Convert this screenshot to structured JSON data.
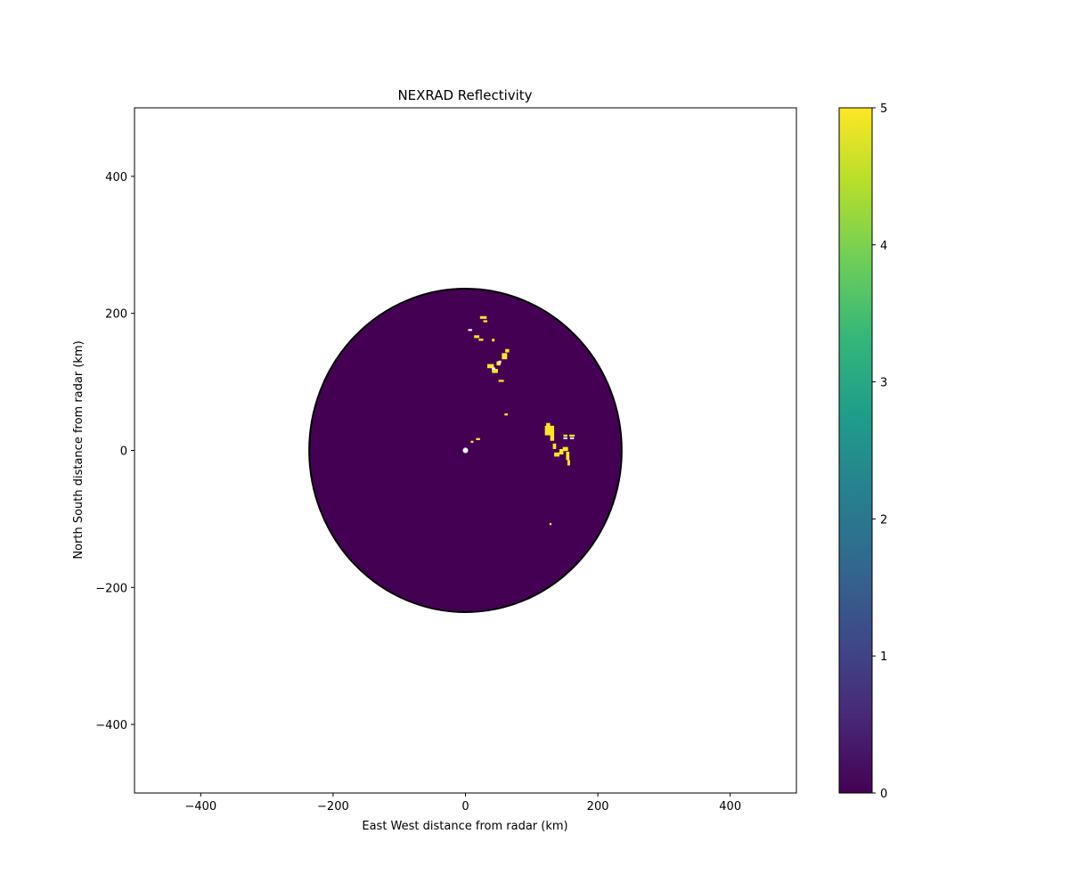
{
  "chart_data": {
    "type": "heatmap",
    "title": "NEXRAD Reflectivity",
    "xlabel": "East West distance from radar (km)",
    "ylabel": "North South distance from radar (km)",
    "xlim": [
      -500,
      500
    ],
    "ylim": [
      -500,
      500
    ],
    "xticks": [
      -400,
      -200,
      0,
      200,
      400
    ],
    "yticks": [
      -400,
      -200,
      0,
      200,
      400
    ],
    "xtick_labels": [
      "−400",
      "−200",
      "0",
      "200",
      "400"
    ],
    "ytick_labels": [
      "−400",
      "−200",
      "0",
      "200",
      "400"
    ],
    "grid": false,
    "radar_range_km": 236,
    "radar_location": [
      0,
      0
    ],
    "background_value": 0,
    "colorbar": {
      "min": 0,
      "max": 5,
      "ticks": [
        0,
        1,
        2,
        3,
        4,
        5
      ],
      "tick_labels": [
        "0",
        "1",
        "2",
        "3",
        "4",
        "5"
      ],
      "colormap": "viridis",
      "colors": [
        "#440154",
        "#3b528b",
        "#21918c",
        "#5ec962",
        "#fde725"
      ]
    },
    "echo_regions": [
      {
        "x": 22,
        "y": 192,
        "w": 10,
        "h": 4,
        "value": 5
      },
      {
        "x": 27,
        "y": 187,
        "w": 6,
        "h": 3,
        "value": 5
      },
      {
        "x": 13,
        "y": 164,
        "w": 8,
        "h": 4,
        "value": 5
      },
      {
        "x": 20,
        "y": 160,
        "w": 7,
        "h": 3,
        "value": 5
      },
      {
        "x": 40,
        "y": 159,
        "w": 4,
        "h": 4,
        "value": 5
      },
      {
        "x": 60,
        "y": 143,
        "w": 6,
        "h": 5,
        "value": 5
      },
      {
        "x": 55,
        "y": 133,
        "w": 8,
        "h": 9,
        "value": 5
      },
      {
        "x": 47,
        "y": 124,
        "w": 6,
        "h": 6,
        "value": 5
      },
      {
        "x": 33,
        "y": 120,
        "w": 10,
        "h": 6,
        "value": 5
      },
      {
        "x": 40,
        "y": 113,
        "w": 9,
        "h": 6,
        "value": 5
      },
      {
        "x": 50,
        "y": 100,
        "w": 8,
        "h": 3,
        "value": 5
      },
      {
        "x": 59,
        "y": 51,
        "w": 5,
        "h": 3,
        "value": 5
      },
      {
        "x": 122,
        "y": 34,
        "w": 6,
        "h": 6,
        "value": 5
      },
      {
        "x": 120,
        "y": 22,
        "w": 14,
        "h": 14,
        "value": 5
      },
      {
        "x": 128,
        "y": 14,
        "w": 6,
        "h": 10,
        "value": 5
      },
      {
        "x": 148,
        "y": 20,
        "w": 6,
        "h": 3,
        "value": 5
      },
      {
        "x": 157,
        "y": 20,
        "w": 8,
        "h": 3,
        "value": 5
      },
      {
        "x": 132,
        "y": 2,
        "w": 5,
        "h": 8,
        "value": 5
      },
      {
        "x": 134,
        "y": -9,
        "w": 8,
        "h": 6,
        "value": 5
      },
      {
        "x": 142,
        "y": -6,
        "w": 6,
        "h": 8,
        "value": 5
      },
      {
        "x": 147,
        "y": -1,
        "w": 8,
        "h": 6,
        "value": 5
      },
      {
        "x": 152,
        "y": -14,
        "w": 5,
        "h": 12,
        "value": 5
      },
      {
        "x": 154,
        "y": -22,
        "w": 4,
        "h": 8,
        "value": 5
      },
      {
        "x": 127,
        "y": -109,
        "w": 3,
        "h": 3,
        "value": 5
      },
      {
        "x": 8,
        "y": 11,
        "w": 4,
        "h": 3,
        "value": 5
      },
      {
        "x": 16,
        "y": 15,
        "w": 6,
        "h": 3,
        "value": 5
      }
    ],
    "blank_regions": [
      {
        "x": 4,
        "y": 175,
        "w": 6,
        "h": 2
      },
      {
        "x": 40,
        "y": 118,
        "w": 5,
        "h": 3
      },
      {
        "x": 50,
        "y": 127,
        "w": 4,
        "h": 4
      },
      {
        "x": 148,
        "y": 17,
        "w": 6,
        "h": 2
      },
      {
        "x": 158,
        "y": 17,
        "w": 6,
        "h": 2
      },
      {
        "x": 0,
        "y": 0,
        "r": 4
      }
    ]
  }
}
